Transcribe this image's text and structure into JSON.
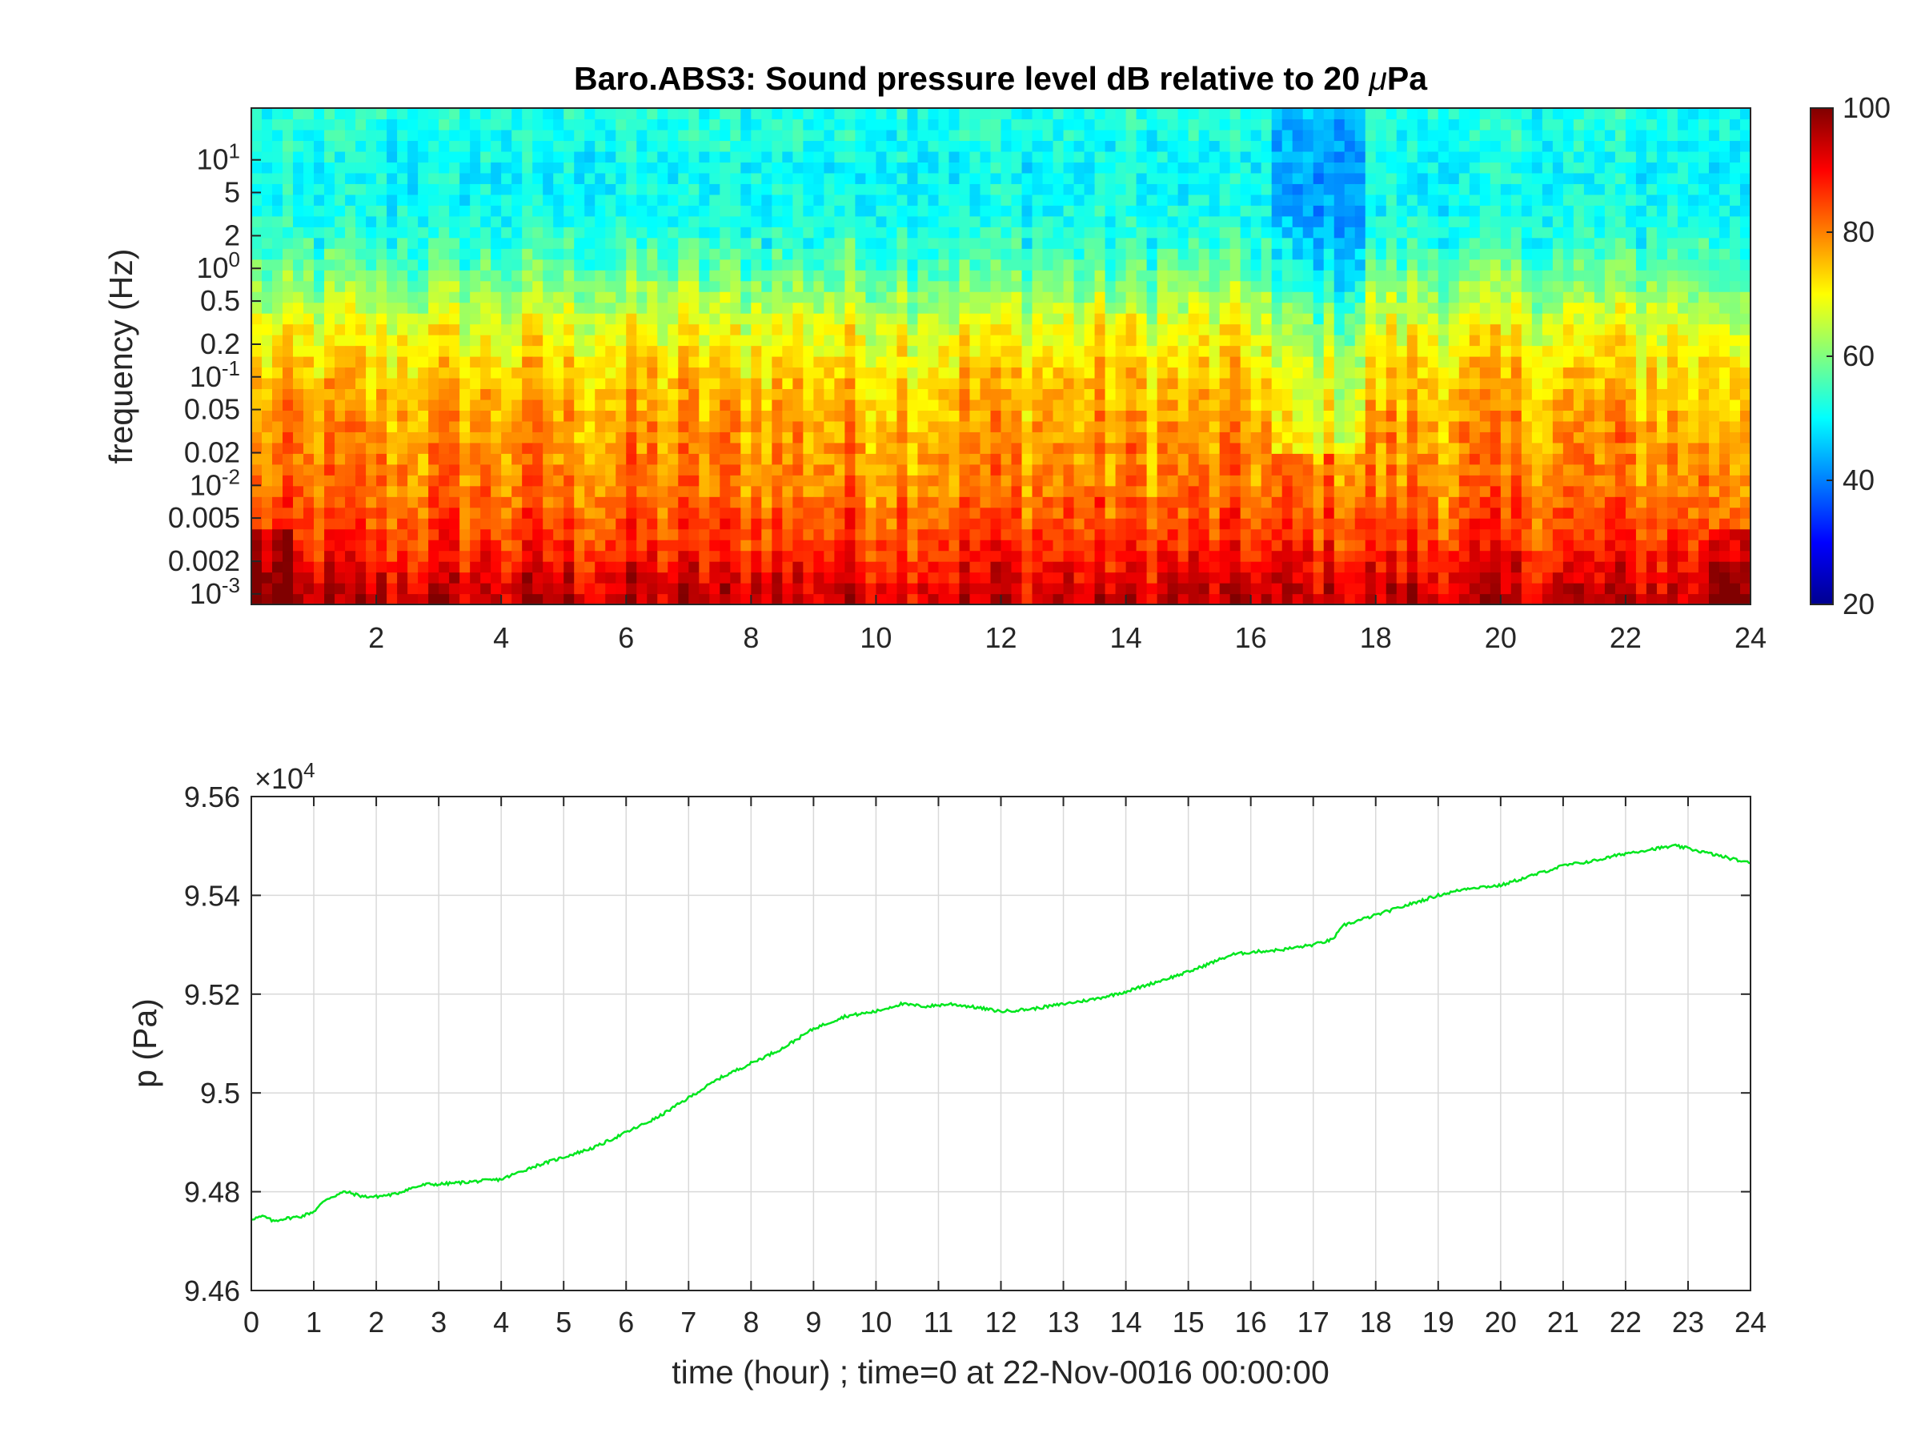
{
  "colors": {
    "series": "#00e61e",
    "grid": "#d9d9d9",
    "axis": "#262626",
    "background": "#ffffff"
  },
  "chart_data": [
    {
      "type": "heatmap",
      "title_main": "Baro.ABS3: Sound pressure level dB relative to 20 ",
      "title_mu": "μ",
      "title_unit": "Pa",
      "ylabel": "frequency (Hz)",
      "xlabel": "",
      "xlim": [
        0,
        24
      ],
      "ylim_hz": [
        0.0008,
        30
      ],
      "y_scale": "log",
      "colormap": "jet",
      "x_ticks": [
        {
          "value": 2,
          "label": "2"
        },
        {
          "value": 4,
          "label": "4"
        },
        {
          "value": 6,
          "label": "6"
        },
        {
          "value": 8,
          "label": "8"
        },
        {
          "value": 10,
          "label": "10"
        },
        {
          "value": 12,
          "label": "12"
        },
        {
          "value": 14,
          "label": "14"
        },
        {
          "value": 16,
          "label": "16"
        },
        {
          "value": 18,
          "label": "18"
        },
        {
          "value": 20,
          "label": "20"
        },
        {
          "value": 22,
          "label": "22"
        },
        {
          "value": 24,
          "label": "24"
        }
      ],
      "y_ticks": [
        {
          "value": 10,
          "base": "10",
          "exp": "1"
        },
        {
          "value": 5,
          "label": "5"
        },
        {
          "value": 2,
          "label": "2"
        },
        {
          "value": 1,
          "base": "10",
          "exp": "0"
        },
        {
          "value": 0.5,
          "label": "0.5"
        },
        {
          "value": 0.2,
          "label": "0.2"
        },
        {
          "value": 0.1,
          "base": "10",
          "exp": "-1"
        },
        {
          "value": 0.05,
          "label": "0.05"
        },
        {
          "value": 0.02,
          "label": "0.02"
        },
        {
          "value": 0.01,
          "base": "10",
          "exp": "-2"
        },
        {
          "value": 0.005,
          "label": "0.005"
        },
        {
          "value": 0.002,
          "label": "0.002"
        },
        {
          "value": 0.001,
          "base": "10",
          "exp": "-3"
        }
      ],
      "colorbar": {
        "range": [
          20,
          100
        ],
        "ticks": [
          {
            "value": 100,
            "label": "100"
          },
          {
            "value": 80,
            "label": "80"
          },
          {
            "value": 60,
            "label": "60"
          },
          {
            "value": 40,
            "label": "40"
          },
          {
            "value": 20,
            "label": "20"
          }
        ]
      },
      "spl_profile_db": [
        {
          "freq_hz": 20,
          "db": 52
        },
        {
          "freq_hz": 8,
          "db": 50
        },
        {
          "freq_hz": 3,
          "db": 51
        },
        {
          "freq_hz": 1,
          "db": 57
        },
        {
          "freq_hz": 0.3,
          "db": 68
        },
        {
          "freq_hz": 0.1,
          "db": 74
        },
        {
          "freq_hz": 0.03,
          "db": 78
        },
        {
          "freq_hz": 0.01,
          "db": 80
        },
        {
          "freq_hz": 0.003,
          "db": 86
        },
        {
          "freq_hz": 0.001,
          "db": 94
        }
      ],
      "quiet_period_hours": [
        16.3,
        17.8
      ]
    },
    {
      "type": "line",
      "title": "",
      "xlabel": "time (hour) ; time=0 at 22-Nov-0016 00:00:00",
      "ylabel": "p (Pa)",
      "y_multiplier_base": "×10",
      "y_multiplier_exp": "4",
      "xlim": [
        0,
        24
      ],
      "ylim": [
        94600,
        95600
      ],
      "grid": true,
      "x_ticks": [
        "0",
        "1",
        "2",
        "3",
        "4",
        "5",
        "6",
        "7",
        "8",
        "9",
        "10",
        "11",
        "12",
        "13",
        "14",
        "15",
        "16",
        "17",
        "18",
        "19",
        "20",
        "21",
        "22",
        "23",
        "24"
      ],
      "y_ticks": [
        {
          "value": 94600,
          "label": "9.46"
        },
        {
          "value": 94800,
          "label": "9.48"
        },
        {
          "value": 95000,
          "label": "9.5"
        },
        {
          "value": 95200,
          "label": "9.52"
        },
        {
          "value": 95400,
          "label": "9.54"
        },
        {
          "value": 95600,
          "label": "9.56"
        }
      ],
      "series": [
        {
          "x": [
            0,
            0.2,
            0.35,
            0.5,
            0.8,
            1.0,
            1.2,
            1.5,
            1.8,
            2.0,
            2.3,
            2.5,
            2.8,
            3.0,
            3.5,
            4.0,
            4.2,
            4.5,
            5.0,
            5.5,
            6.0,
            6.5,
            7.0,
            7.5,
            8.0,
            8.5,
            9.0,
            9.5,
            10.0,
            10.4,
            10.8,
            11.2,
            11.5,
            12.0,
            12.5,
            13.0,
            13.5,
            14.0,
            14.5,
            15.0,
            15.3,
            15.5,
            15.7,
            16.0,
            16.5,
            17.0,
            17.3,
            17.5,
            18.0,
            18.5,
            19.0,
            19.5,
            20.0,
            20.5,
            21.0,
            21.5,
            22.0,
            22.5,
            22.8,
            23.0,
            23.5,
            24.0
          ],
          "y": [
            94745,
            94750,
            94740,
            94745,
            94750,
            94760,
            94785,
            94800,
            94790,
            94790,
            94795,
            94805,
            94815,
            94815,
            94820,
            94825,
            94835,
            94850,
            94870,
            94890,
            94920,
            94950,
            94990,
            95030,
            95060,
            95090,
            95130,
            95155,
            95165,
            95180,
            95175,
            95180,
            95175,
            95165,
            95170,
            95180,
            95190,
            95205,
            95225,
            95245,
            95260,
            95270,
            95280,
            95285,
            95290,
            95300,
            95310,
            95340,
            95360,
            95380,
            95400,
            95415,
            95420,
            95440,
            95460,
            95470,
            95485,
            95495,
            95500,
            95495,
            95480,
            95465
          ]
        }
      ]
    }
  ]
}
